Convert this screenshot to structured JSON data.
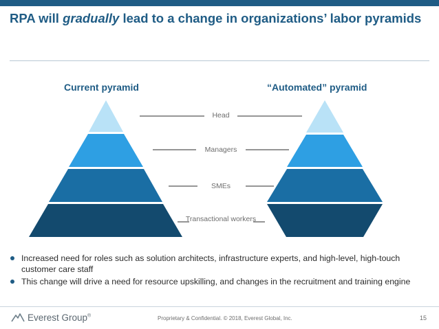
{
  "title": {
    "part1": "RPA will ",
    "emph": "gradually",
    "part2": " lead to a change in organizations’ labor pyramids"
  },
  "diagram": {
    "current_heading": "Current pyramid",
    "automated_heading": "“Automated” pyramid",
    "levels": [
      {
        "label": "Head",
        "color": "#b9e2f7"
      },
      {
        "label": "Managers",
        "color": "#2e9fe3"
      },
      {
        "label": "SMEs",
        "color": "#1a6ea4"
      },
      {
        "label": "Transactional workers",
        "color": "#134a6e"
      }
    ]
  },
  "bullets": [
    "Increased need for roles such as solution architects, infrastructure experts, and high-level, high-touch customer care staff",
    "This change will drive a need for resource upskilling, and changes in the recruitment and training engine"
  ],
  "footer": {
    "logo_text": "Everest Group",
    "logo_mark": "®",
    "confidential": "Proprietary & Confidential. © 2018, Everest Global, Inc.",
    "page_number": "15"
  },
  "colors": {
    "brand": "#1f5c85",
    "connector": "#2b2b2b"
  }
}
